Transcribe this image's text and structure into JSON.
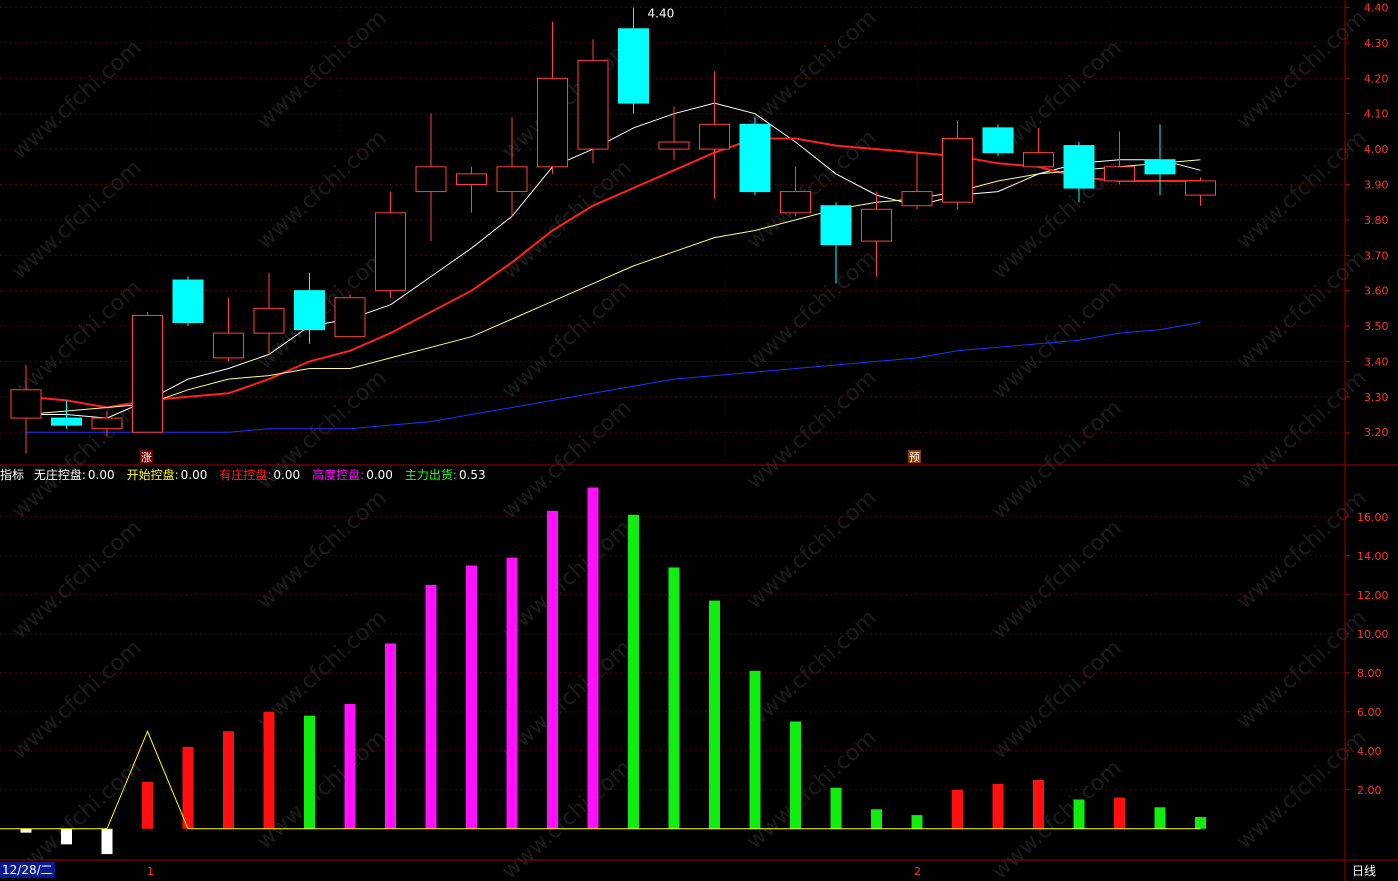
{
  "legend": {
    "name": "指标",
    "items": [
      {
        "label": "无庄控盘:",
        "value": "0.00",
        "color": "#ffffff"
      },
      {
        "label": "开始控盘:",
        "value": "0.00",
        "color": "#ffff00"
      },
      {
        "label": "有庄控盘:",
        "value": "0.00",
        "color": "#ff2020"
      },
      {
        "label": "高度控盘:",
        "value": "0.00",
        "color": "#ff00ff"
      },
      {
        "label": "主力出货:",
        "value": "0.53",
        "color": "#20ff20"
      }
    ]
  },
  "footer": {
    "date_label": "12/28/二",
    "period_label": "日线",
    "marker_1": "1",
    "marker_2": "2"
  },
  "markers": {
    "zhang": "涨",
    "yu": "预"
  },
  "watermark": "www.cfchi.com",
  "colors": {
    "up": "#ff4040",
    "down": "#00ffff",
    "ma5": "#ffffff",
    "ma10": "#ff2020",
    "ma20": "#ffff80",
    "ma60": "#2030ff",
    "axis": "#a00000",
    "grid": "#550000"
  },
  "chart_data": [
    {
      "type": "candlestick",
      "ylim": [
        3.13,
        4.41
      ],
      "yticks": [
        3.2,
        3.3,
        3.4,
        3.5,
        3.6,
        3.7,
        3.8,
        3.9,
        4.0,
        4.1,
        4.2,
        4.3,
        4.4
      ],
      "high_label": "4.40",
      "candles": [
        {
          "o": 3.24,
          "c": 3.32,
          "h": 3.39,
          "l": 3.14
        },
        {
          "o": 3.24,
          "c": 3.22,
          "h": 3.29,
          "l": 3.21
        },
        {
          "o": 3.21,
          "c": 3.24,
          "h": 3.26,
          "l": 3.19
        },
        {
          "o": 3.2,
          "c": 3.53,
          "h": 3.54,
          "l": 3.2
        },
        {
          "o": 3.63,
          "c": 3.51,
          "h": 3.64,
          "l": 3.5
        },
        {
          "o": 3.41,
          "c": 3.48,
          "h": 3.58,
          "l": 3.4
        },
        {
          "o": 3.48,
          "c": 3.55,
          "h": 3.65,
          "l": 3.42
        },
        {
          "o": 3.6,
          "c": 3.49,
          "h": 3.65,
          "l": 3.45
        },
        {
          "o": 3.47,
          "c": 3.58,
          "h": 3.59,
          "l": 3.47
        },
        {
          "o": 3.6,
          "c": 3.82,
          "h": 3.88,
          "l": 3.58
        },
        {
          "o": 3.88,
          "c": 3.95,
          "h": 4.1,
          "l": 3.74
        },
        {
          "o": 3.9,
          "c": 3.93,
          "h": 3.95,
          "l": 3.82
        },
        {
          "o": 3.88,
          "c": 3.95,
          "h": 4.09,
          "l": 3.81
        },
        {
          "o": 3.95,
          "c": 4.2,
          "h": 4.36,
          "l": 3.93
        },
        {
          "o": 4.0,
          "c": 4.25,
          "h": 4.31,
          "l": 3.96
        },
        {
          "o": 4.34,
          "c": 4.13,
          "h": 4.4,
          "l": 4.1
        },
        {
          "o": 4.0,
          "c": 4.02,
          "h": 4.12,
          "l": 3.97
        },
        {
          "o": 4.0,
          "c": 4.07,
          "h": 4.22,
          "l": 3.86
        },
        {
          "o": 4.07,
          "c": 3.88,
          "h": 4.09,
          "l": 3.87
        },
        {
          "o": 3.82,
          "c": 3.88,
          "h": 3.95,
          "l": 3.81
        },
        {
          "o": 3.84,
          "c": 3.73,
          "h": 3.85,
          "l": 3.62
        },
        {
          "o": 3.74,
          "c": 3.83,
          "h": 3.88,
          "l": 3.64
        },
        {
          "o": 3.84,
          "c": 3.88,
          "h": 3.99,
          "l": 3.83
        },
        {
          "o": 3.85,
          "c": 4.03,
          "h": 4.08,
          "l": 3.83
        },
        {
          "o": 4.06,
          "c": 3.99,
          "h": 4.07,
          "l": 3.98
        },
        {
          "o": 3.95,
          "c": 3.99,
          "h": 4.06,
          "l": 3.95
        },
        {
          "o": 4.01,
          "c": 3.89,
          "h": 4.02,
          "l": 3.85
        },
        {
          "o": 3.91,
          "c": 3.95,
          "h": 4.05,
          "l": 3.9
        },
        {
          "o": 3.97,
          "c": 3.93,
          "h": 4.07,
          "l": 3.87
        },
        {
          "o": 3.87,
          "c": 3.91,
          "h": 3.92,
          "l": 3.84
        }
      ],
      "ma": [
        {
          "name": "MA5",
          "color": "#ffffff",
          "values": [
            3.25,
            3.25,
            3.24,
            3.29,
            3.35,
            3.38,
            3.42,
            3.5,
            3.52,
            3.56,
            3.64,
            3.72,
            3.81,
            3.95,
            4.0,
            4.06,
            4.1,
            4.13,
            4.1,
            4.02,
            3.93,
            3.87,
            3.84,
            3.87,
            3.88,
            3.93,
            3.96,
            3.97,
            3.97,
            3.94
          ]
        },
        {
          "name": "MA10",
          "color": "#ff2020",
          "values": [
            3.3,
            3.29,
            3.27,
            3.29,
            3.3,
            3.31,
            3.35,
            3.4,
            3.43,
            3.48,
            3.54,
            3.6,
            3.68,
            3.77,
            3.84,
            3.89,
            3.94,
            3.99,
            4.03,
            4.03,
            4.01,
            4.0,
            3.99,
            3.98,
            3.96,
            3.95,
            3.92,
            3.91,
            3.91,
            3.91
          ]
        },
        {
          "name": "MA20",
          "color": "#ffff80",
          "values": [
            3.25,
            3.26,
            3.27,
            3.28,
            3.32,
            3.35,
            3.36,
            3.38,
            3.38,
            3.41,
            3.44,
            3.47,
            3.52,
            3.57,
            3.62,
            3.67,
            3.71,
            3.75,
            3.77,
            3.8,
            3.83,
            3.85,
            3.86,
            3.88,
            3.91,
            3.93,
            3.94,
            3.95,
            3.96,
            3.97
          ]
        },
        {
          "name": "MA60",
          "color": "#2030ff",
          "values": [
            3.2,
            3.2,
            3.2,
            3.2,
            3.2,
            3.2,
            3.21,
            3.21,
            3.21,
            3.22,
            3.23,
            3.25,
            3.27,
            3.29,
            3.31,
            3.33,
            3.35,
            3.36,
            3.37,
            3.38,
            3.39,
            3.4,
            3.41,
            3.43,
            3.44,
            3.45,
            3.46,
            3.48,
            3.49,
            3.51
          ]
        }
      ]
    },
    {
      "type": "bar",
      "ylim": [
        -1.5,
        18.5
      ],
      "yticks": [
        2.0,
        4.0,
        6.0,
        8.0,
        10.0,
        12.0,
        14.0,
        16.0
      ],
      "values": [
        -0.2,
        -0.8,
        -1.3,
        2.4,
        4.2,
        5.0,
        6.0,
        5.8,
        6.4,
        9.5,
        12.5,
        13.5,
        13.9,
        16.3,
        17.5,
        16.1,
        13.4,
        11.7,
        8.1,
        5.5,
        2.1,
        1.0,
        0.7,
        2.0,
        2.3,
        2.5,
        1.5,
        1.6,
        1.1,
        0.6
      ],
      "colors": [
        "white",
        "white",
        "white",
        "red",
        "red",
        "red",
        "red",
        "green",
        "magenta",
        "magenta",
        "magenta",
        "magenta",
        "magenta",
        "magenta",
        "magenta",
        "green",
        "green",
        "green",
        "green",
        "green",
        "green",
        "green",
        "green",
        "red",
        "red",
        "red",
        "green",
        "red",
        "green",
        "green"
      ],
      "line": {
        "color": "#ffff00",
        "values": [
          0,
          0,
          0,
          5.0,
          0,
          0,
          0,
          0,
          0,
          0,
          0,
          0,
          0,
          0,
          0,
          0,
          0,
          0,
          0,
          0,
          0,
          0,
          0,
          0,
          0,
          0,
          0,
          0,
          0,
          0
        ]
      }
    }
  ]
}
